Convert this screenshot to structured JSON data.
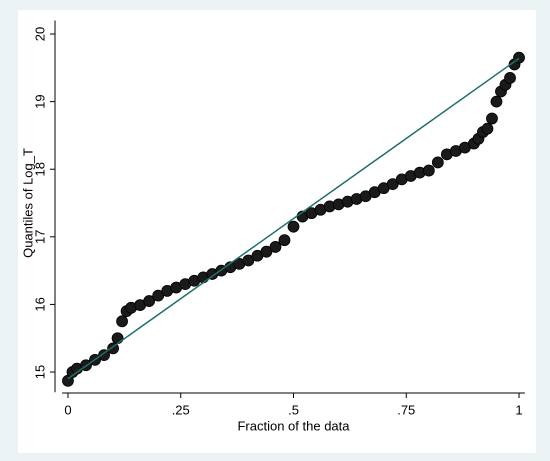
{
  "chart_data": {
    "type": "scatter",
    "x_label": "Fraction of the data",
    "y_label": "Quantiles of Log_T",
    "xlim": [
      -0.013,
      1.013
    ],
    "ylim": [
      14.7,
      20.2
    ],
    "xticks": [
      0,
      {
        "value": 0.25,
        "label": ".25"
      },
      {
        "value": 0.5,
        "label": ".5"
      },
      {
        "value": 0.75,
        "label": ".75"
      },
      1
    ],
    "yticks": [
      15,
      16,
      17,
      18,
      19,
      20
    ],
    "grid": false,
    "points": {
      "color": "#1a1a1a",
      "x": [
        0,
        0.01,
        0.02,
        0.04,
        0.06,
        0.08,
        0.1,
        0.11,
        0.12,
        0.13,
        0.14,
        0.16,
        0.18,
        0.2,
        0.22,
        0.24,
        0.26,
        0.28,
        0.3,
        0.32,
        0.34,
        0.36,
        0.38,
        0.4,
        0.42,
        0.44,
        0.46,
        0.48,
        0.5,
        0.52,
        0.54,
        0.56,
        0.58,
        0.6,
        0.62,
        0.64,
        0.66,
        0.68,
        0.7,
        0.72,
        0.74,
        0.76,
        0.78,
        0.8,
        0.82,
        0.84,
        0.86,
        0.88,
        0.9,
        0.91,
        0.92,
        0.93,
        0.94,
        0.95,
        0.96,
        0.97,
        0.98,
        0.99,
        1.0
      ],
      "values": [
        14.87,
        15.0,
        15.05,
        15.1,
        15.18,
        15.25,
        15.35,
        15.5,
        15.75,
        15.9,
        15.95,
        15.99,
        16.05,
        16.13,
        16.2,
        16.25,
        16.3,
        16.35,
        16.4,
        16.45,
        16.5,
        16.55,
        16.6,
        16.65,
        16.72,
        16.78,
        16.85,
        16.95,
        17.15,
        17.3,
        17.35,
        17.4,
        17.45,
        17.48,
        17.52,
        17.56,
        17.6,
        17.66,
        17.72,
        17.78,
        17.85,
        17.9,
        17.95,
        17.98,
        18.1,
        18.22,
        18.27,
        18.32,
        18.38,
        18.45,
        18.55,
        18.6,
        18.75,
        19.0,
        19.15,
        19.25,
        19.35,
        19.55,
        19.65
      ]
    },
    "reference_line": {
      "color": "#1f6f6b",
      "x": [
        0,
        1
      ],
      "values": [
        14.9,
        19.64
      ]
    }
  }
}
